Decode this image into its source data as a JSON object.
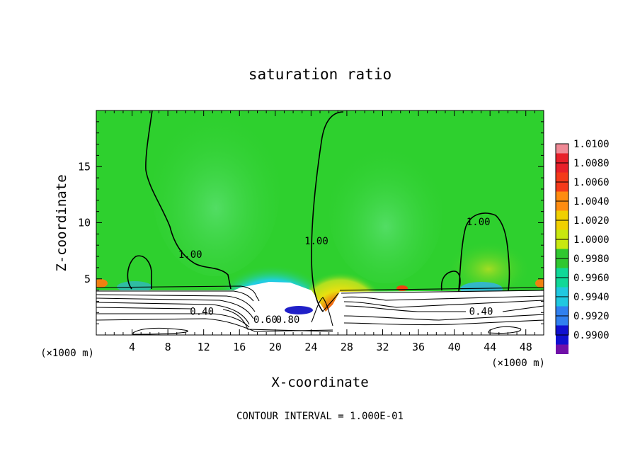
{
  "chart_data": {
    "type": "heatmap",
    "title": "saturation ratio",
    "xlabel": "X-coordinate",
    "ylabel": "Z-coordinate",
    "x_unit_left": "(×1000 m)",
    "x_unit_right": "(×1000 m)",
    "footer": "CONTOUR INTERVAL = 1.000E-01",
    "xlim": [
      0,
      50
    ],
    "ylim": [
      0,
      20
    ],
    "x_ticks": [
      4,
      8,
      12,
      16,
      20,
      24,
      28,
      32,
      36,
      40,
      44,
      48
    ],
    "y_ticks": [
      5,
      10,
      15
    ],
    "colorbar": {
      "levels": [
        "1.0100",
        "1.0080",
        "1.0060",
        "1.0040",
        "1.0020",
        "1.0000",
        "0.9980",
        "0.9960",
        "0.9940",
        "0.9920",
        "0.9900"
      ],
      "colors": [
        "#f08a96",
        "#e8202a",
        "#f43a1a",
        "#ff8c10",
        "#f0d000",
        "#c8e810",
        "#30c830",
        "#10d898",
        "#20c8e0",
        "#3080f0",
        "#1010d0",
        "#7010a8"
      ]
    },
    "contour_labels": [
      {
        "text": "1.00",
        "x": 10.5,
        "y": 7.2
      },
      {
        "text": "1.00",
        "x": 24.6,
        "y": 8.4
      },
      {
        "text": "1.00",
        "x": 42.7,
        "y": 10.1
      },
      {
        "text": "0.40",
        "x": 11.8,
        "y": 2.1
      },
      {
        "text": "0.40",
        "x": 43.0,
        "y": 2.1
      },
      {
        "text": "0.60",
        "x": 18.9,
        "y": 1.4
      },
      {
        "text": "0.80",
        "x": 21.4,
        "y": 1.4
      }
    ]
  },
  "colors": {
    "background_field": "#2ed02e",
    "lower_region": "#ffffff",
    "contour": "#000000"
  }
}
